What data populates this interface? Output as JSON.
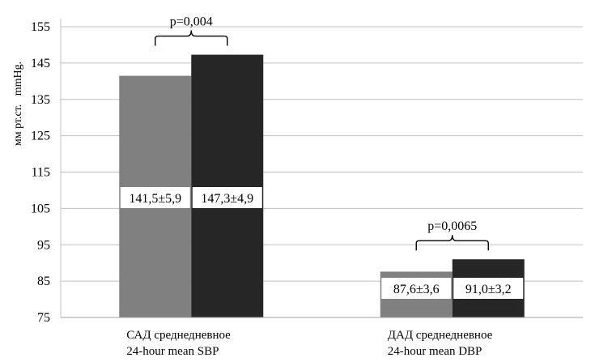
{
  "chart_data": {
    "type": "bar",
    "ylabel": "мм рт.ст.   mmHg.",
    "ylim": [
      75,
      155
    ],
    "yticks": [
      75,
      85,
      95,
      105,
      115,
      125,
      135,
      145,
      155
    ],
    "grid": true,
    "categories": [
      {
        "line1": "САД среднедневное",
        "line2": "24-hour mean SBP"
      },
      {
        "line1": "ДАД среднедневное",
        "line2": "24-hour mean DBP"
      }
    ],
    "series": [
      {
        "color": "#808080",
        "values": [
          141.5,
          87.6
        ],
        "labels": [
          "141,5±5,9",
          "87,6±3,6"
        ]
      },
      {
        "color": "#262626",
        "values": [
          147.3,
          91.0
        ],
        "labels": [
          "147,3±4,9",
          "91,0±3,2"
        ]
      }
    ],
    "annotations": [
      {
        "category": 0,
        "text": "p=0,004"
      },
      {
        "category": 1,
        "text": "p=0,0065"
      }
    ]
  }
}
